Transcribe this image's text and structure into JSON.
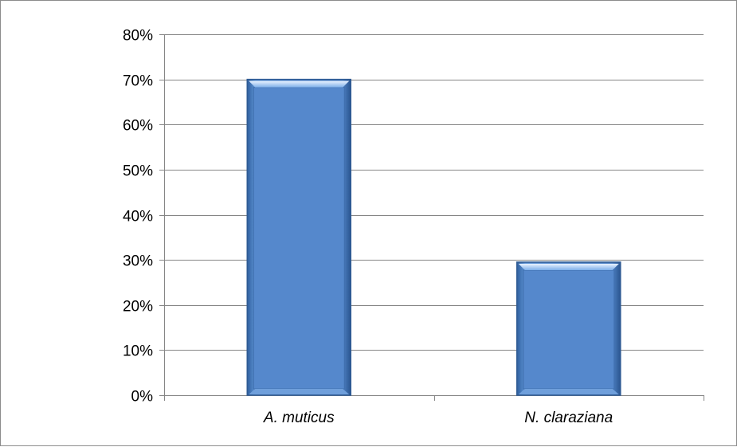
{
  "chart_data": {
    "type": "bar",
    "categories": [
      "A. muticus",
      "N. claraziana"
    ],
    "values": [
      70,
      29.5
    ],
    "value_format": "percent",
    "ylim": [
      0,
      80
    ],
    "yticks": [
      0,
      10,
      20,
      30,
      40,
      50,
      60,
      70,
      80
    ],
    "ytick_labels": [
      "0%",
      "10%",
      "20%",
      "30%",
      "40%",
      "50%",
      "60%",
      "70%",
      "80%"
    ],
    "grid": true,
    "legend": "none",
    "title": "",
    "xlabel": "",
    "ylabel": "",
    "colors": {
      "bar_fill": "#5588cc",
      "bar_edge": "#2e5a93",
      "bar_highlight": "#cfe3ff",
      "gridline": "#868686",
      "axis": "#868686"
    }
  }
}
